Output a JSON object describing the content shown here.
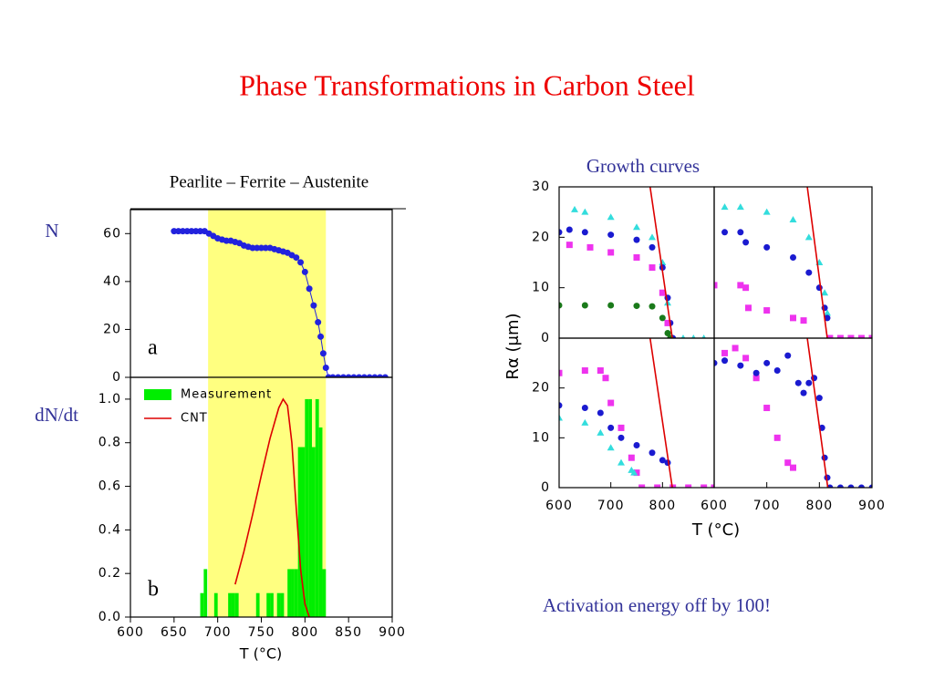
{
  "title": "Phase Transformations in  Carbon Steel",
  "growth": {
    "title": "Growth curves",
    "ylabel": "Rα (μm)",
    "xlabel": "T (°C)"
  },
  "note": "Activation energy off by 100!",
  "chart_data": [
    {
      "type": "scatter",
      "header": "Pearlite  –  Ferrite  –   Austenite",
      "ylabel": "N",
      "label": "a",
      "xlim": [
        600,
        900
      ],
      "ylim": [
        0,
        70
      ],
      "yticks": [
        0,
        20,
        40,
        60
      ],
      "shade": [
        689,
        824
      ],
      "shade_color": "#ffff80",
      "series": [
        {
          "color": "#2222dd",
          "marker": "circle",
          "connect": true,
          "x": [
            650,
            655,
            660,
            665,
            670,
            675,
            680,
            685,
            690,
            695,
            700,
            705,
            710,
            715,
            720,
            725,
            730,
            735,
            740,
            745,
            750,
            755,
            760,
            765,
            770,
            775,
            780,
            785,
            790,
            795,
            800,
            805,
            810,
            815,
            818,
            821,
            824,
            827,
            832,
            838,
            844,
            850,
            856,
            862,
            868,
            874,
            880,
            886,
            892
          ],
          "values": [
            61,
            61,
            61,
            61,
            61,
            61,
            61,
            61,
            60,
            59,
            58,
            57.5,
            57,
            57,
            56.5,
            56,
            55,
            54.5,
            54,
            54,
            54,
            54,
            54,
            53.5,
            53,
            52.5,
            52,
            51,
            50,
            48,
            44,
            37,
            30,
            23,
            17,
            10,
            4,
            0,
            0,
            0,
            0,
            0,
            0,
            0,
            0,
            0,
            0,
            0,
            0
          ]
        }
      ]
    },
    {
      "type": "histogram",
      "ylabel": "dN/dt",
      "label": "b",
      "xlabel": "T (°C)",
      "xlim": [
        600,
        900
      ],
      "ylim": [
        0,
        1.1
      ],
      "xticks": [
        600,
        650,
        700,
        750,
        800,
        850,
        900
      ],
      "yticks": [
        {
          "value": 0,
          "label": "0.0"
        },
        0.2,
        0.4,
        0.6,
        0.8,
        {
          "value": 1,
          "label": "1.0"
        }
      ],
      "shade": [
        689,
        824
      ],
      "shade_color": "#ffff80",
      "histogram": {
        "name": "Measurement",
        "color": "#00ee00",
        "bins": [
          680,
          684,
          688,
          692,
          696,
          700,
          704,
          708,
          712,
          716,
          720,
          724,
          728,
          732,
          736,
          740,
          744,
          748,
          752,
          756,
          760,
          764,
          768,
          772,
          776,
          780,
          784,
          788,
          792,
          796,
          800,
          804,
          808,
          812,
          816,
          820,
          824
        ],
        "counts": [
          0.11,
          0.22,
          0,
          0,
          0.11,
          0,
          0,
          0,
          0.11,
          0.11,
          0.11,
          0,
          0,
          0,
          0,
          0,
          0.11,
          0,
          0,
          0.11,
          0.11,
          0,
          0.11,
          0.11,
          0,
          0.22,
          0.22,
          0.22,
          0.78,
          0.78,
          1.0,
          1.0,
          0.78,
          1.0,
          0.87,
          0.22
        ]
      },
      "series": [
        {
          "name": "CNT",
          "color": "#dd0000",
          "marker": "line",
          "x": [
            720,
            730,
            740,
            750,
            760,
            770,
            775,
            780,
            785,
            790,
            795,
            800,
            805
          ],
          "values": [
            0.15,
            0.3,
            0.47,
            0.65,
            0.82,
            0.96,
            1.0,
            0.97,
            0.8,
            0.5,
            0.22,
            0.06,
            0
          ]
        }
      ]
    },
    {
      "type": "scatter",
      "xlim": [
        600,
        900
      ],
      "ylim": [
        0,
        30
      ],
      "yticks": [
        0,
        10,
        20,
        30
      ],
      "series": [
        {
          "color": "#33dddd",
          "marker": "triangle",
          "x": [
            630,
            650,
            700,
            750,
            780,
            800,
            810,
            820,
            840,
            860,
            880
          ],
          "values": [
            25.5,
            25,
            24,
            22,
            20,
            15,
            7,
            0,
            0,
            0,
            0
          ]
        },
        {
          "color": "#1a1ad0",
          "marker": "circle",
          "x": [
            600,
            620,
            650,
            700,
            750,
            780,
            800,
            810,
            815,
            820
          ],
          "values": [
            21,
            21.5,
            21,
            20.5,
            19.5,
            18,
            14,
            8,
            3,
            0
          ]
        },
        {
          "color": "#ee33ee",
          "marker": "square",
          "x": [
            620,
            660,
            700,
            750,
            780,
            800,
            810
          ],
          "values": [
            18.5,
            18,
            17,
            16,
            14,
            9,
            3
          ]
        },
        {
          "color": "#1a7a1a",
          "marker": "circle",
          "x": [
            600,
            650,
            700,
            750,
            780,
            800,
            810,
            815
          ],
          "values": [
            6.5,
            6.5,
            6.5,
            6.4,
            6.3,
            4,
            1,
            0
          ]
        },
        {
          "color": "#dd0000",
          "marker": "line",
          "x": [
            776,
            819
          ],
          "values": [
            30,
            0
          ]
        }
      ]
    },
    {
      "type": "scatter",
      "xlim": [
        600,
        900
      ],
      "ylim": [
        0,
        30
      ],
      "series": [
        {
          "color": "#33dddd",
          "marker": "triangle",
          "x": [
            620,
            650,
            700,
            750,
            780,
            800,
            810,
            815
          ],
          "values": [
            26,
            26,
            25,
            23.5,
            20,
            15,
            9,
            5
          ]
        },
        {
          "color": "#1a1ad0",
          "marker": "circle",
          "x": [
            620,
            650,
            660,
            700,
            750,
            780,
            800,
            810,
            815
          ],
          "values": [
            21,
            21,
            19,
            18,
            16,
            13,
            10,
            6,
            4
          ]
        },
        {
          "color": "#ee33ee",
          "marker": "square",
          "x": [
            600,
            650,
            660,
            665,
            700,
            750,
            770,
            820,
            840,
            860,
            880,
            900
          ],
          "values": [
            10.5,
            10.5,
            10,
            6,
            5.5,
            4,
            3.5,
            0,
            0,
            0,
            0,
            0
          ]
        },
        {
          "color": "#dd0000",
          "marker": "line",
          "x": [
            777,
            815
          ],
          "values": [
            30,
            0
          ]
        }
      ]
    },
    {
      "type": "scatter",
      "xlim": [
        600,
        900
      ],
      "ylim": [
        0,
        30
      ],
      "xticks": [
        600,
        700,
        800
      ],
      "yticks": [
        0,
        10,
        20
      ],
      "series": [
        {
          "color": "#ee33ee",
          "marker": "square",
          "x": [
            600,
            650,
            680,
            690,
            700,
            720,
            740,
            750,
            760,
            790,
            820,
            850,
            880,
            900
          ],
          "values": [
            23,
            23.5,
            23.5,
            22,
            17,
            12,
            6,
            3,
            0,
            0,
            0,
            0,
            0,
            0
          ]
        },
        {
          "color": "#1a1ad0",
          "marker": "circle",
          "x": [
            600,
            650,
            680,
            700,
            720,
            750,
            780,
            800,
            810
          ],
          "values": [
            16.5,
            16,
            15,
            12,
            10,
            8.5,
            7,
            5.5,
            5
          ]
        },
        {
          "color": "#33dddd",
          "marker": "triangle",
          "x": [
            600,
            650,
            680,
            700,
            720,
            740,
            745
          ],
          "values": [
            14,
            13,
            11,
            8,
            5,
            3.5,
            3
          ]
        },
        {
          "color": "#dd0000",
          "marker": "line",
          "x": [
            776,
            819
          ],
          "values": [
            30,
            0
          ]
        }
      ]
    },
    {
      "type": "scatter",
      "xlim": [
        600,
        900
      ],
      "ylim": [
        0,
        30
      ],
      "xticks": [
        600,
        700,
        800,
        900
      ],
      "series": [
        {
          "color": "#ee33ee",
          "marker": "square",
          "x": [
            620,
            640,
            660,
            680,
            700,
            720,
            740,
            750
          ],
          "values": [
            27,
            28,
            26,
            22,
            16,
            10,
            5,
            4
          ]
        },
        {
          "color": "#1a1ad0",
          "marker": "circle",
          "x": [
            600,
            620,
            650,
            680,
            700,
            720,
            740,
            760,
            770,
            780,
            790,
            800,
            805,
            810,
            815,
            820,
            840,
            860,
            880,
            900
          ],
          "values": [
            25,
            25.5,
            24.5,
            23,
            25,
            23.5,
            26.5,
            21,
            19,
            21,
            22,
            18,
            12,
            6,
            2,
            0,
            0,
            0,
            0,
            0
          ]
        },
        {
          "color": "#dd0000",
          "marker": "line",
          "x": [
            777,
            816
          ],
          "values": [
            30,
            0
          ]
        }
      ]
    }
  ]
}
